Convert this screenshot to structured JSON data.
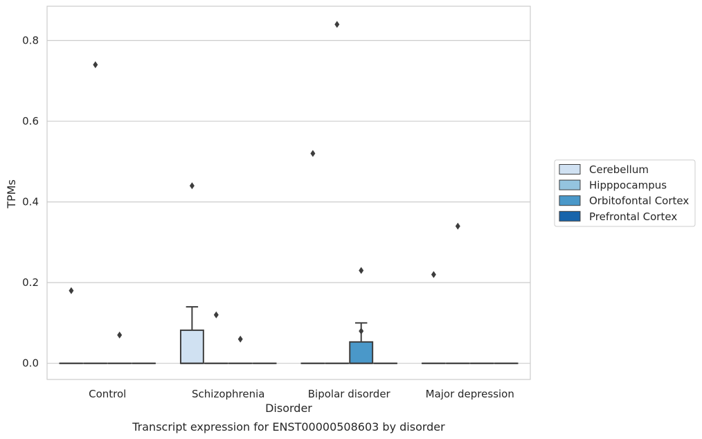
{
  "chart_data": {
    "type": "box",
    "xlabel": "Disorder",
    "ylabel": "TPMs",
    "caption": "Transcript expression for ENST00000508603 by disorder",
    "categories": [
      "Control",
      "Schizophrenia",
      "Bipolar disorder",
      "Major depression"
    ],
    "ylim": [
      -0.04,
      0.885
    ],
    "yticks": [
      "0.0",
      "0.2",
      "0.4",
      "0.6",
      "0.8"
    ],
    "ytick_values": [
      0.0,
      0.2,
      0.4,
      0.6,
      0.8
    ],
    "grid": "horizontal",
    "legend_placement": "right, outside",
    "series": [
      {
        "name": "Cerebellum",
        "color": "#d0e1f2",
        "boxes": [
          {
            "q1": 0,
            "median": 0,
            "q3": 0,
            "whisker_low": 0,
            "whisker_high": 0,
            "outliers": [
              0.18
            ]
          },
          {
            "q1": 0,
            "median": 0,
            "q3": 0.082,
            "whisker_low": 0,
            "whisker_high": 0.14,
            "outliers": [
              0.44
            ]
          },
          {
            "q1": 0,
            "median": 0,
            "q3": 0,
            "whisker_low": 0,
            "whisker_high": 0,
            "outliers": [
              0.52
            ]
          },
          {
            "q1": 0,
            "median": 0,
            "q3": 0,
            "whisker_low": 0,
            "whisker_high": 0,
            "outliers": [
              0.22
            ]
          }
        ]
      },
      {
        "name": "Hipppocampus",
        "color": "#94c4df",
        "boxes": [
          {
            "q1": 0,
            "median": 0,
            "q3": 0,
            "whisker_low": 0,
            "whisker_high": 0,
            "outliers": [
              0.74
            ]
          },
          {
            "q1": 0,
            "median": 0,
            "q3": 0,
            "whisker_low": 0,
            "whisker_high": 0,
            "outliers": [
              0.12
            ]
          },
          {
            "q1": 0,
            "median": 0,
            "q3": 0,
            "whisker_low": 0,
            "whisker_high": 0,
            "outliers": [
              0.84
            ]
          },
          {
            "q1": 0,
            "median": 0,
            "q3": 0,
            "whisker_low": 0,
            "whisker_high": 0,
            "outliers": [
              0.34
            ]
          }
        ]
      },
      {
        "name": "Orbitofontal Cortex",
        "color": "#4a98c9",
        "boxes": [
          {
            "q1": 0,
            "median": 0,
            "q3": 0,
            "whisker_low": 0,
            "whisker_high": 0,
            "outliers": [
              0.07
            ]
          },
          {
            "q1": 0,
            "median": 0,
            "q3": 0,
            "whisker_low": 0,
            "whisker_high": 0,
            "outliers": [
              0.06
            ]
          },
          {
            "q1": 0,
            "median": 0,
            "q3": 0.053,
            "whisker_low": 0,
            "whisker_high": 0.1,
            "outliers": [
              0.23,
              0.08
            ]
          },
          {
            "q1": 0,
            "median": 0,
            "q3": 0,
            "whisker_low": 0,
            "whisker_high": 0,
            "outliers": []
          }
        ]
      },
      {
        "name": "Prefrontal Cortex",
        "color": "#1764ab",
        "boxes": [
          {
            "q1": 0,
            "median": 0,
            "q3": 0,
            "whisker_low": 0,
            "whisker_high": 0,
            "outliers": []
          },
          {
            "q1": 0,
            "median": 0,
            "q3": 0,
            "whisker_low": 0,
            "whisker_high": 0,
            "outliers": []
          },
          {
            "q1": 0,
            "median": 0,
            "q3": 0,
            "whisker_low": 0,
            "whisker_high": 0,
            "outliers": []
          },
          {
            "q1": 0,
            "median": 0,
            "q3": 0,
            "whisker_low": 0,
            "whisker_high": 0,
            "outliers": []
          }
        ]
      }
    ]
  }
}
